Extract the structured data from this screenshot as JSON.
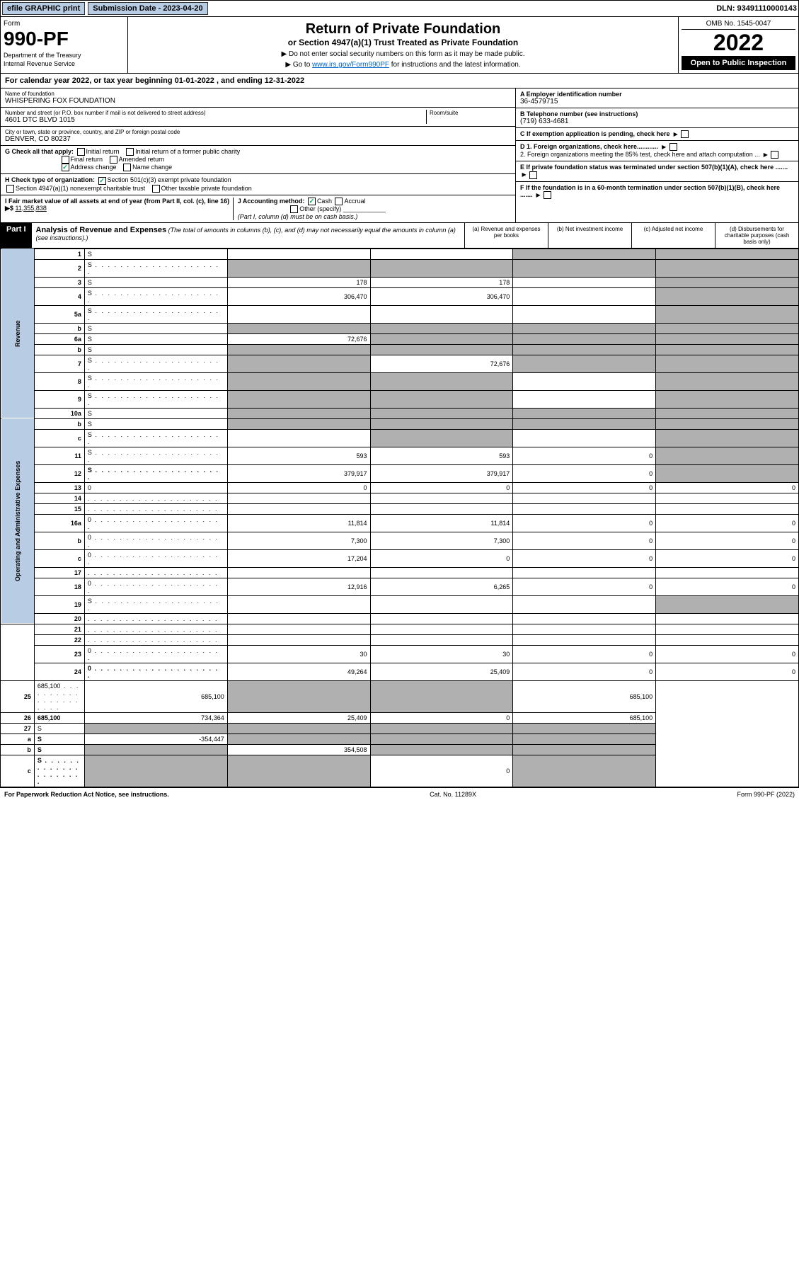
{
  "top": {
    "efile": "efile GRAPHIC print",
    "submission": "Submission Date - 2023-04-20",
    "dln": "DLN: 93491110000143"
  },
  "header": {
    "form_label": "Form",
    "form_num": "990-PF",
    "dept1": "Department of the Treasury",
    "dept2": "Internal Revenue Service",
    "title": "Return of Private Foundation",
    "subtitle": "or Section 4947(a)(1) Trust Treated as Private Foundation",
    "instr1": "▶ Do not enter social security numbers on this form as it may be made public.",
    "instr2_pre": "▶ Go to ",
    "instr2_link": "www.irs.gov/Form990PF",
    "instr2_post": " for instructions and the latest information.",
    "omb": "OMB No. 1545-0047",
    "year": "2022",
    "open": "Open to Public Inspection"
  },
  "cal_year": "For calendar year 2022, or tax year beginning 01-01-2022                                    , and ending 12-31-2022",
  "entity": {
    "name_label": "Name of foundation",
    "name": "WHISPERING FOX FOUNDATION",
    "addr_label": "Number and street (or P.O. box number if mail is not delivered to street address)",
    "addr": "4601 DTC BLVD 1015",
    "room_label": "Room/suite",
    "city_label": "City or town, state or province, country, and ZIP or foreign postal code",
    "city": "DENVER, CO  80237",
    "ein_label": "A Employer identification number",
    "ein": "36-4579715",
    "phone_label": "B Telephone number (see instructions)",
    "phone": "(719) 633-4681",
    "c_label": "C If exemption application is pending, check here",
    "d1": "D 1. Foreign organizations, check here............",
    "d2": "2. Foreign organizations meeting the 85% test, check here and attach computation ...",
    "e_label": "E If private foundation status was terminated under section 507(b)(1)(A), check here .......",
    "f_label": "F If the foundation is in a 60-month termination under section 507(b)(1)(B), check here .......",
    "g_label": "G Check all that apply:",
    "g_opts": [
      "Initial return",
      "Initial return of a former public charity",
      "Final return",
      "Amended return",
      "Address change",
      "Name change"
    ],
    "h_label": "H Check type of organization:",
    "h_opts": [
      "Section 501(c)(3) exempt private foundation",
      "Section 4947(a)(1) nonexempt charitable trust",
      "Other taxable private foundation"
    ],
    "i_label": "I Fair market value of all assets at end of year (from Part II, col. (c), line 16) ▶$",
    "i_val": "11,355,838",
    "j_label": "J Accounting method:",
    "j_opts": [
      "Cash",
      "Accrual",
      "Other (specify)"
    ],
    "j_note": "(Part I, column (d) must be on cash basis.)"
  },
  "part1": {
    "label": "Part I",
    "title": "Analysis of Revenue and Expenses",
    "desc": "(The total of amounts in columns (b), (c), and (d) may not necessarily equal the amounts in column (a) (see instructions).)",
    "cols": {
      "a": "(a) Revenue and expenses per books",
      "b": "(b) Net investment income",
      "c": "(c) Adjusted net income",
      "d": "(d) Disbursements for charitable purposes (cash basis only)"
    }
  },
  "sections": {
    "revenue": "Revenue",
    "expenses": "Operating and Administrative Expenses"
  },
  "rows": [
    {
      "n": "1",
      "d": "S",
      "a": "",
      "b": "",
      "c": "S"
    },
    {
      "n": "2",
      "d": "S",
      "dots": true,
      "a": "S",
      "b": "S",
      "c": "S"
    },
    {
      "n": "3",
      "d": "S",
      "a": "178",
      "b": "178",
      "c": ""
    },
    {
      "n": "4",
      "d": "S",
      "dots": true,
      "a": "306,470",
      "b": "306,470",
      "c": ""
    },
    {
      "n": "5a",
      "d": "S",
      "dots": true,
      "a": "",
      "b": "",
      "c": ""
    },
    {
      "n": "b",
      "d": "S",
      "a": "S",
      "b": "S",
      "c": "S"
    },
    {
      "n": "6a",
      "d": "S",
      "a": "72,676",
      "b": "S",
      "c": "S"
    },
    {
      "n": "b",
      "d": "S",
      "a": "S",
      "b": "S",
      "c": "S"
    },
    {
      "n": "7",
      "d": "S",
      "dots": true,
      "a": "S",
      "b": "72,676",
      "c": "S"
    },
    {
      "n": "8",
      "d": "S",
      "dots": true,
      "a": "S",
      "b": "S",
      "c": ""
    },
    {
      "n": "9",
      "d": "S",
      "dots": true,
      "a": "S",
      "b": "S",
      "c": ""
    },
    {
      "n": "10a",
      "d": "S",
      "a": "S",
      "b": "S",
      "c": "S"
    },
    {
      "n": "b",
      "d": "S",
      "a": "S",
      "b": "S",
      "c": "S"
    },
    {
      "n": "c",
      "d": "S",
      "dots": true,
      "a": "",
      "b": "S",
      "c": ""
    },
    {
      "n": "11",
      "d": "S",
      "dots": true,
      "a": "593",
      "b": "593",
      "c": "0"
    },
    {
      "n": "12",
      "d": "S",
      "dots": true,
      "bold": true,
      "a": "379,917",
      "b": "379,917",
      "c": "0"
    },
    {
      "n": "13",
      "d": "0",
      "a": "0",
      "b": "0",
      "c": "0"
    },
    {
      "n": "14",
      "d": "",
      "dots": true,
      "a": "",
      "b": "",
      "c": ""
    },
    {
      "n": "15",
      "d": "",
      "dots": true,
      "a": "",
      "b": "",
      "c": ""
    },
    {
      "n": "16a",
      "d": "0",
      "dots": true,
      "a": "11,814",
      "b": "11,814",
      "c": "0"
    },
    {
      "n": "b",
      "d": "0",
      "dots": true,
      "a": "7,300",
      "b": "7,300",
      "c": "0"
    },
    {
      "n": "c",
      "d": "0",
      "dots": true,
      "a": "17,204",
      "b": "0",
      "c": "0"
    },
    {
      "n": "17",
      "d": "",
      "dots": true,
      "a": "",
      "b": "",
      "c": ""
    },
    {
      "n": "18",
      "d": "0",
      "dots": true,
      "a": "12,916",
      "b": "6,265",
      "c": "0"
    },
    {
      "n": "19",
      "d": "S",
      "dots": true,
      "a": "",
      "b": "",
      "c": ""
    },
    {
      "n": "20",
      "d": "",
      "dots": true,
      "a": "",
      "b": "",
      "c": ""
    },
    {
      "n": "21",
      "d": "",
      "dots": true,
      "a": "",
      "b": "",
      "c": ""
    },
    {
      "n": "22",
      "d": "",
      "dots": true,
      "a": "",
      "b": "",
      "c": ""
    },
    {
      "n": "23",
      "d": "0",
      "dots": true,
      "a": "30",
      "b": "30",
      "c": "0"
    },
    {
      "n": "24",
      "d": "0",
      "dots": true,
      "bold": true,
      "a": "49,264",
      "b": "25,409",
      "c": "0"
    },
    {
      "n": "25",
      "d": "685,100",
      "dots": true,
      "a": "685,100",
      "b": "S",
      "c": "S"
    },
    {
      "n": "26",
      "d": "685,100",
      "bold": true,
      "a": "734,364",
      "b": "25,409",
      "c": "0"
    },
    {
      "n": "27",
      "d": "S",
      "a": "S",
      "b": "S",
      "c": "S"
    },
    {
      "n": "a",
      "d": "S",
      "bold": true,
      "a": "-354,447",
      "b": "S",
      "c": "S"
    },
    {
      "n": "b",
      "d": "S",
      "bold": true,
      "a": "S",
      "b": "354,508",
      "c": "S"
    },
    {
      "n": "c",
      "d": "S",
      "dots": true,
      "bold": true,
      "a": "S",
      "b": "S",
      "c": "0"
    }
  ],
  "footer": {
    "left": "For Paperwork Reduction Act Notice, see instructions.",
    "mid": "Cat. No. 11289X",
    "right": "Form 990-PF (2022)"
  }
}
